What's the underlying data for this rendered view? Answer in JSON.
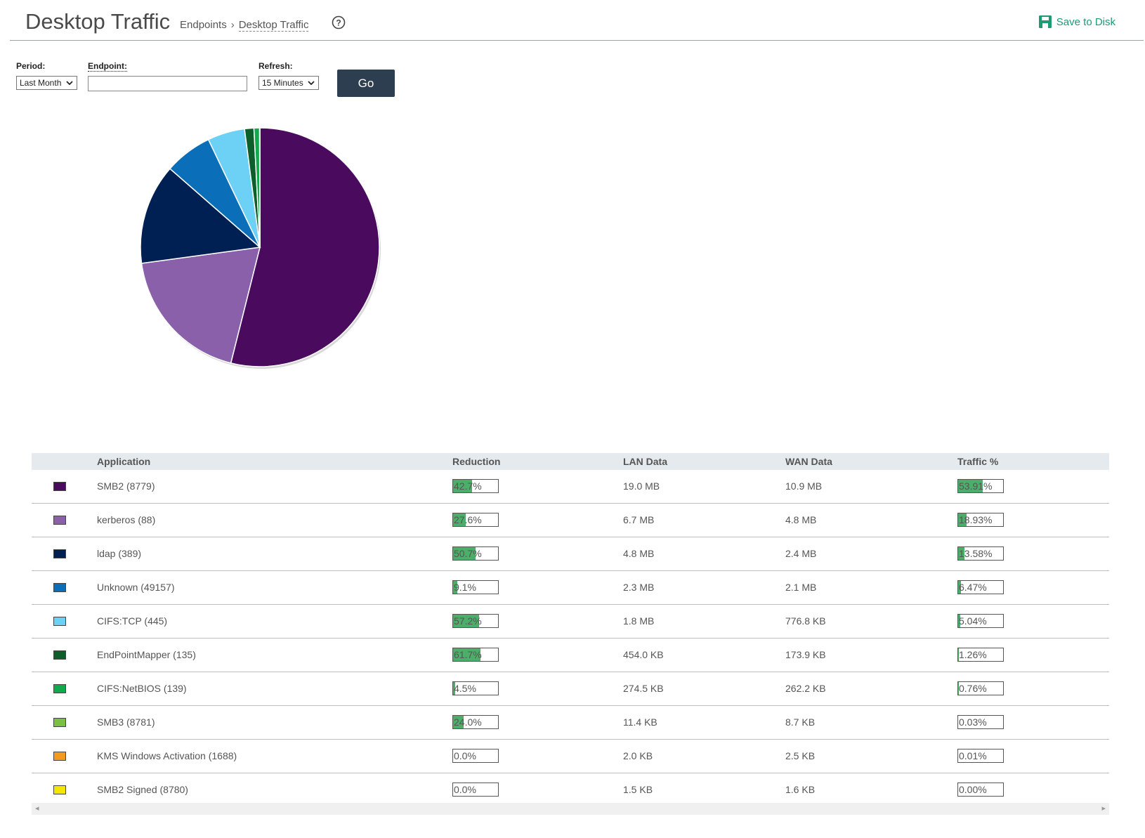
{
  "header": {
    "title": "Desktop Traffic",
    "breadcrumb": [
      "Endpoints",
      "Desktop Traffic"
    ],
    "save_label": "Save to Disk"
  },
  "filters": {
    "period_label": "Period:",
    "period_value": "Last Month",
    "endpoint_label": "Endpoint:",
    "endpoint_value": "",
    "refresh_label": "Refresh:",
    "refresh_value": "15 Minutes",
    "go_label": "Go"
  },
  "table": {
    "columns": [
      "Application",
      "Reduction",
      "LAN Data",
      "WAN Data",
      "Traffic %"
    ],
    "rows": [
      {
        "color": "#4a0b5f",
        "app": "SMB2 (8779)",
        "reduction": "42.7%",
        "reduction_val": 42.7,
        "lan": "19.0 MB",
        "wan": "10.9 MB",
        "traffic": "53.91%",
        "traffic_val": 53.91
      },
      {
        "color": "#8a60ab",
        "app": "kerberos (88)",
        "reduction": "27.6%",
        "reduction_val": 27.6,
        "lan": "6.7 MB",
        "wan": "4.8 MB",
        "traffic": "18.93%",
        "traffic_val": 18.93
      },
      {
        "color": "#001f52",
        "app": "ldap (389)",
        "reduction": "50.7%",
        "reduction_val": 50.7,
        "lan": "4.8 MB",
        "wan": "2.4 MB",
        "traffic": "13.58%",
        "traffic_val": 13.58
      },
      {
        "color": "#0a6fb8",
        "app": "Unknown (49157)",
        "reduction": "9.1%",
        "reduction_val": 9.1,
        "lan": "2.3 MB",
        "wan": "2.1 MB",
        "traffic": "6.47%",
        "traffic_val": 6.47
      },
      {
        "color": "#6dd0f5",
        "app": "CIFS:TCP (445)",
        "reduction": "57.2%",
        "reduction_val": 57.2,
        "lan": "1.8 MB",
        "wan": "776.8 KB",
        "traffic": "5.04%",
        "traffic_val": 5.04
      },
      {
        "color": "#0d5e2a",
        "app": "EndPointMapper (135)",
        "reduction": "61.7%",
        "reduction_val": 61.7,
        "lan": "454.0 KB",
        "wan": "173.9 KB",
        "traffic": "1.26%",
        "traffic_val": 1.26
      },
      {
        "color": "#12a84e",
        "app": "CIFS:NetBIOS (139)",
        "reduction": "4.5%",
        "reduction_val": 4.5,
        "lan": "274.5 KB",
        "wan": "262.2 KB",
        "traffic": "0.76%",
        "traffic_val": 0.76
      },
      {
        "color": "#7ac143",
        "app": "SMB3 (8781)",
        "reduction": "24.0%",
        "reduction_val": 24.0,
        "lan": "11.4 KB",
        "wan": "8.7 KB",
        "traffic": "0.03%",
        "traffic_val": 0.03
      },
      {
        "color": "#f39a1e",
        "app": "KMS Windows Activation (1688)",
        "reduction": "0.0%",
        "reduction_val": 0.0,
        "lan": "2.0 KB",
        "wan": "2.5 KB",
        "traffic": "0.01%",
        "traffic_val": 0.01
      },
      {
        "color": "#f5e600",
        "app": "SMB2 Signed (8780)",
        "reduction": "0.0%",
        "reduction_val": 0.0,
        "lan": "1.5 KB",
        "wan": "1.6 KB",
        "traffic": "0.00%",
        "traffic_val": 0.0
      }
    ]
  },
  "chart_data": {
    "type": "pie",
    "categories": [
      "SMB2 (8779)",
      "kerberos (88)",
      "ldap (389)",
      "Unknown (49157)",
      "CIFS:TCP (445)",
      "EndPointMapper (135)",
      "CIFS:NetBIOS (139)",
      "SMB3 (8781)",
      "KMS Windows Activation (1688)",
      "SMB2 Signed (8780)"
    ],
    "values": [
      53.91,
      18.93,
      13.58,
      6.47,
      5.04,
      1.26,
      0.76,
      0.03,
      0.01,
      0.0
    ],
    "colors": [
      "#4a0b5f",
      "#8a60ab",
      "#001f52",
      "#0a6fb8",
      "#6dd0f5",
      "#0d5e2a",
      "#12a84e",
      "#7ac143",
      "#f39a1e",
      "#f5e600"
    ]
  }
}
